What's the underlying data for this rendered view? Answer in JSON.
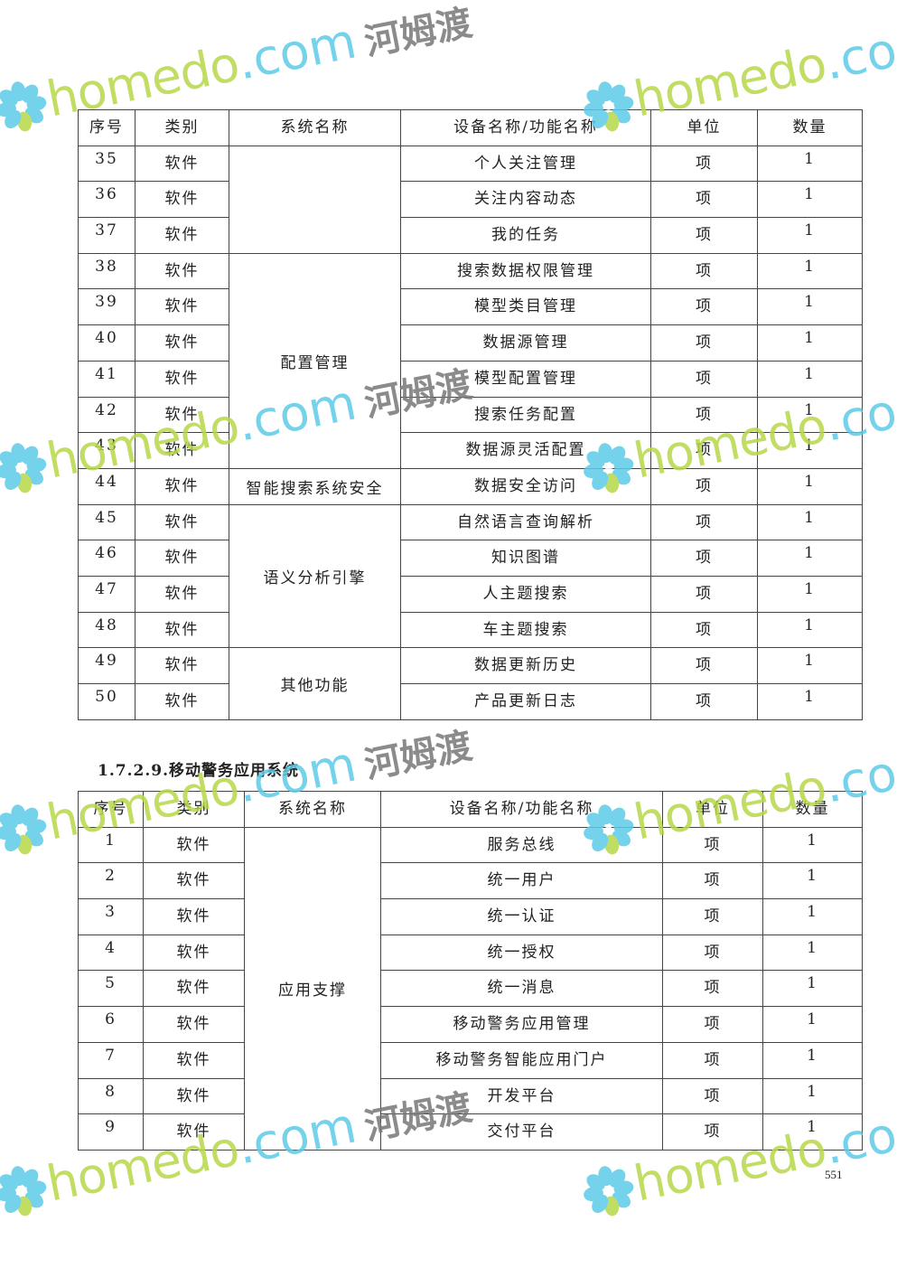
{
  "watermark": {
    "latin": "homedo",
    "domain": ".com",
    "chinese": "河姆渡",
    "colors": {
      "green": "#b7d84a",
      "blue": "#5ccbe8",
      "gray": "#777777"
    }
  },
  "headers": [
    "序号",
    "类别",
    "系统名称",
    "设备名称/功能名称",
    "单位",
    "数量"
  ],
  "table1": {
    "rows": [
      {
        "no": "35",
        "cat": "软件",
        "func": "个人关注管理",
        "unit": "项",
        "qty": "1"
      },
      {
        "no": "36",
        "cat": "软件",
        "func": "关注内容动态",
        "unit": "项",
        "qty": "1"
      },
      {
        "no": "37",
        "cat": "软件",
        "func": "我的任务",
        "unit": "项",
        "qty": "1"
      },
      {
        "no": "38",
        "cat": "软件",
        "func": "搜索数据权限管理",
        "unit": "项",
        "qty": "1"
      },
      {
        "no": "39",
        "cat": "软件",
        "func": "模型类目管理",
        "unit": "项",
        "qty": "1"
      },
      {
        "no": "40",
        "cat": "软件",
        "func": "数据源管理",
        "unit": "项",
        "qty": "1"
      },
      {
        "no": "41",
        "cat": "软件",
        "func": "模型配置管理",
        "unit": "项",
        "qty": "1"
      },
      {
        "no": "42",
        "cat": "软件",
        "func": "搜索任务配置",
        "unit": "项",
        "qty": "1"
      },
      {
        "no": "43",
        "cat": "软件",
        "func": "数据源灵活配置",
        "unit": "项",
        "qty": "1"
      },
      {
        "no": "44",
        "cat": "软件",
        "func": "数据安全访问",
        "unit": "项",
        "qty": "1"
      },
      {
        "no": "45",
        "cat": "软件",
        "func": "自然语言查询解析",
        "unit": "项",
        "qty": "1"
      },
      {
        "no": "46",
        "cat": "软件",
        "func": "知识图谱",
        "unit": "项",
        "qty": "1"
      },
      {
        "no": "47",
        "cat": "软件",
        "func": "人主题搜索",
        "unit": "项",
        "qty": "1"
      },
      {
        "no": "48",
        "cat": "软件",
        "func": "车主题搜索",
        "unit": "项",
        "qty": "1"
      },
      {
        "no": "49",
        "cat": "软件",
        "func": "数据更新历史",
        "unit": "项",
        "qty": "1"
      },
      {
        "no": "50",
        "cat": "软件",
        "func": "产品更新日志",
        "unit": "项",
        "qty": "1"
      }
    ],
    "systems": [
      {
        "name": "",
        "span": 3
      },
      {
        "name": "配置管理",
        "span": 6
      },
      {
        "name": "智能搜索系统安全",
        "span": 1
      },
      {
        "name": "语义分析引擎",
        "span": 4
      },
      {
        "name": "其他功能",
        "span": 2
      }
    ]
  },
  "section_heading": "1.7.2.9.移动警务应用系统",
  "table2": {
    "rows": [
      {
        "no": "1",
        "cat": "软件",
        "func": "服务总线",
        "unit": "项",
        "qty": "1"
      },
      {
        "no": "2",
        "cat": "软件",
        "func": "统一用户",
        "unit": "项",
        "qty": "1"
      },
      {
        "no": "3",
        "cat": "软件",
        "func": "统一认证",
        "unit": "项",
        "qty": "1"
      },
      {
        "no": "4",
        "cat": "软件",
        "func": "统一授权",
        "unit": "项",
        "qty": "1"
      },
      {
        "no": "5",
        "cat": "软件",
        "func": "统一消息",
        "unit": "项",
        "qty": "1"
      },
      {
        "no": "6",
        "cat": "软件",
        "func": "移动警务应用管理",
        "unit": "项",
        "qty": "1"
      },
      {
        "no": "7",
        "cat": "软件",
        "func": "移动警务智能应用门户",
        "unit": "项",
        "qty": "1"
      },
      {
        "no": "8",
        "cat": "软件",
        "func": "开发平台",
        "unit": "项",
        "qty": "1"
      },
      {
        "no": "9",
        "cat": "软件",
        "func": "交付平台",
        "unit": "项",
        "qty": "1"
      }
    ],
    "systems": [
      {
        "name": "应用支撑",
        "span": 9
      }
    ]
  },
  "page_number": "551"
}
